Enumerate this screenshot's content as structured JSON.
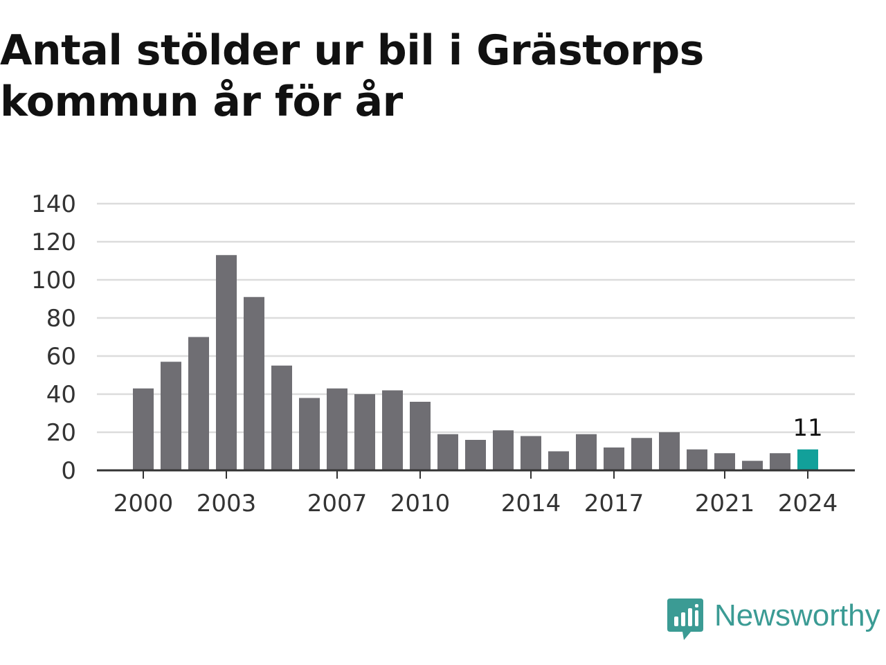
{
  "title": "Antal stölder ur bil i Grästorps kommun år för år",
  "chart_data": {
    "type": "bar",
    "categories": [
      "2000",
      "2001",
      "2002",
      "2003",
      "2004",
      "2005",
      "2006",
      "2007",
      "2008",
      "2009",
      "2010",
      "2011",
      "2012",
      "2013",
      "2014",
      "2015",
      "2016",
      "2017",
      "2018",
      "2019",
      "2020",
      "2021",
      "2022",
      "2023",
      "2024"
    ],
    "values": [
      43,
      57,
      70,
      113,
      91,
      55,
      38,
      43,
      40,
      42,
      36,
      19,
      16,
      21,
      18,
      10,
      19,
      12,
      17,
      20,
      11,
      9,
      5,
      9,
      11
    ],
    "x_tick_labels": [
      "2000",
      "2003",
      "2007",
      "2010",
      "2014",
      "2017",
      "2021",
      "2024"
    ],
    "y_ticks": [
      0,
      20,
      40,
      60,
      80,
      100,
      120,
      140
    ],
    "ylim": [
      0,
      140
    ],
    "grid": true,
    "highlight": {
      "category": "2024",
      "label": "11"
    },
    "colors": {
      "bar": "#6f6e73",
      "highlight": "#12a09a",
      "grid": "#dcdcdc",
      "axis": "#333333"
    }
  },
  "brand": {
    "name": "Newsworthy",
    "icon": "newsworthy-logo-icon",
    "color": "#3b9b94"
  }
}
